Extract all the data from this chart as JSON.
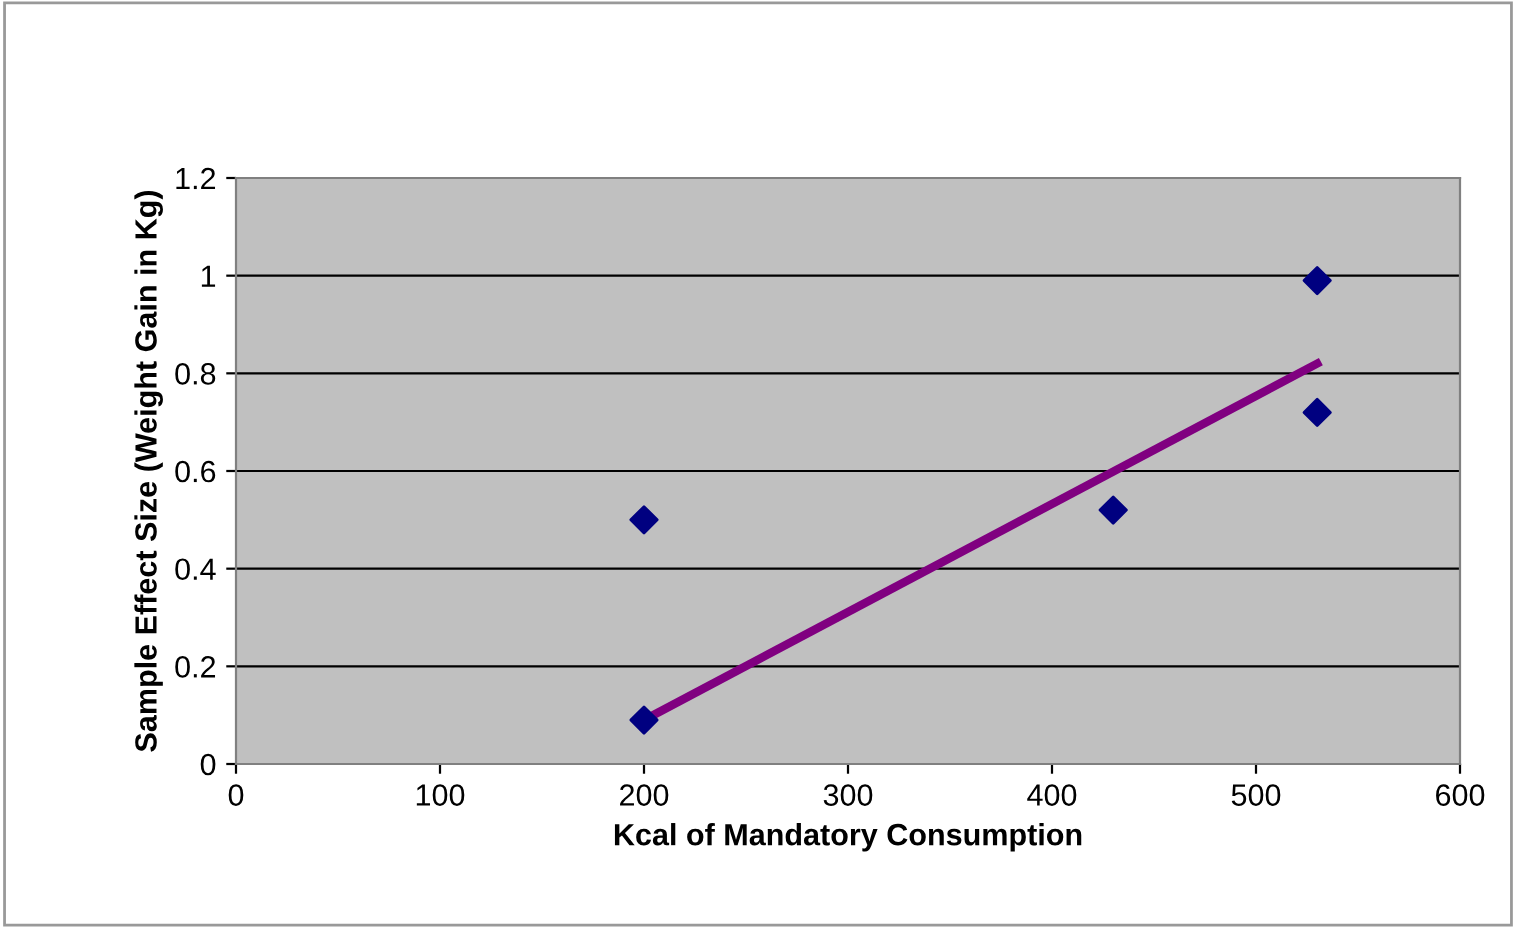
{
  "chart_data": {
    "type": "scatter",
    "xlabel": "Kcal of Mandatory Consumption",
    "ylabel": "Sample Effect Size (Weight Gain in Kg)",
    "xlim": [
      0,
      600
    ],
    "xticks": [
      0,
      100,
      200,
      300,
      400,
      500,
      600
    ],
    "ylim": [
      0,
      1.2
    ],
    "yticks": [
      0,
      0.2,
      0.4,
      0.6,
      0.8,
      1,
      1.2
    ],
    "grid": "y",
    "legend": false,
    "series": [
      {
        "color": "#000080",
        "marker": "diamond",
        "x": [
          200,
          200,
          430,
          530,
          530
        ],
        "values": [
          0.5,
          0.09,
          0.52,
          0.99,
          0.72
        ]
      },
      {
        "type": "line",
        "color": "#800080",
        "marker": "none",
        "line_style": "solid",
        "x": [
          200,
          530
        ],
        "values": [
          0.09,
          0.82
        ]
      }
    ]
  }
}
